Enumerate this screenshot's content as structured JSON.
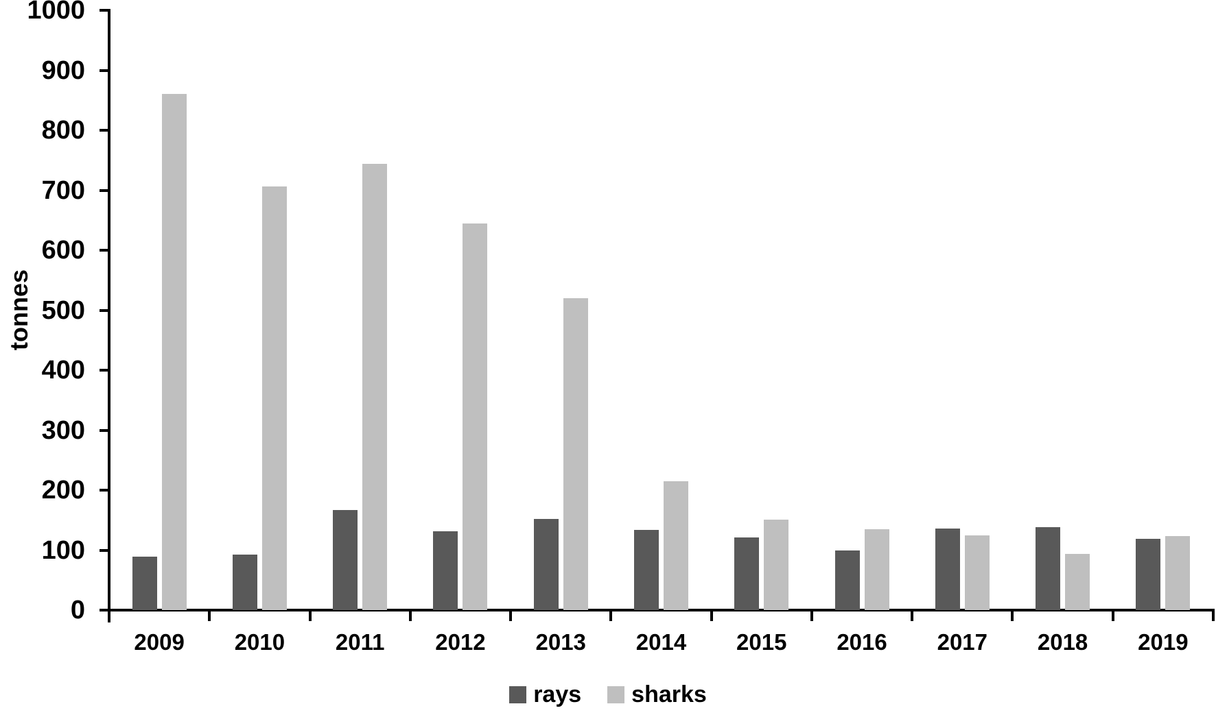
{
  "chart_data": {
    "type": "bar",
    "title": "",
    "xlabel": "",
    "ylabel": "tonnes",
    "categories": [
      "2009",
      "2010",
      "2011",
      "2012",
      "2013",
      "2014",
      "2015",
      "2016",
      "2017",
      "2018",
      "2019"
    ],
    "series": [
      {
        "name": "rays",
        "color": "#595959",
        "values": [
          89,
          93,
          167,
          131,
          152,
          134,
          121,
          100,
          136,
          138,
          119
        ]
      },
      {
        "name": "sharks",
        "color": "#bfbfbf",
        "values": [
          861,
          706,
          744,
          645,
          520,
          215,
          151,
          135,
          125,
          94,
          124
        ]
      }
    ],
    "ylim": [
      0,
      1000
    ],
    "ytick_step": 100,
    "yticks": [
      0,
      100,
      200,
      300,
      400,
      500,
      600,
      700,
      800,
      900,
      1000
    ],
    "grid": false,
    "legend_position": "bottom",
    "axis_color": "#000000",
    "background_color": "#ffffff"
  },
  "legend": {
    "items": [
      {
        "label": "rays",
        "color": "#595959"
      },
      {
        "label": "sharks",
        "color": "#bfbfbf"
      }
    ]
  }
}
